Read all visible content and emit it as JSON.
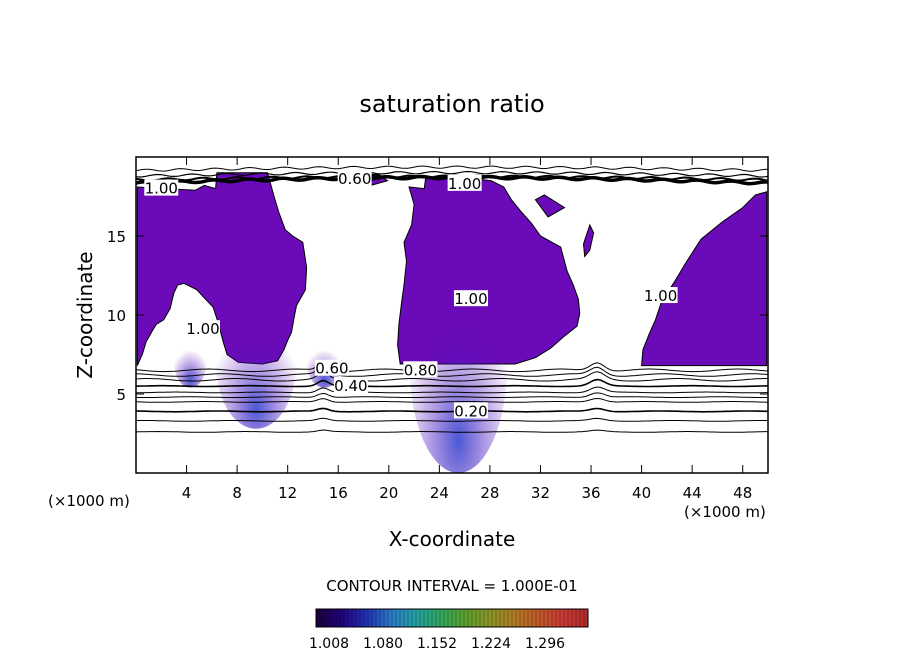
{
  "chart_data": {
    "type": "contour",
    "title": "saturation ratio",
    "xlabel": "X-coordinate",
    "ylabel": "Z-coordinate",
    "x_unit_left": "(×1000 m)",
    "x_unit_right": "(×1000 m)",
    "xlim": [
      0,
      50
    ],
    "ylim": [
      0,
      20
    ],
    "x_ticks": [
      {
        "value": 4,
        "label": "4"
      },
      {
        "value": 8,
        "label": "8"
      },
      {
        "value": 12,
        "label": "12"
      },
      {
        "value": 16,
        "label": "16"
      },
      {
        "value": 20,
        "label": "20"
      },
      {
        "value": 24,
        "label": "24"
      },
      {
        "value": 28,
        "label": "28"
      },
      {
        "value": 32,
        "label": "32"
      },
      {
        "value": 36,
        "label": "36"
      },
      {
        "value": 40,
        "label": "40"
      },
      {
        "value": 44,
        "label": "44"
      },
      {
        "value": 48,
        "label": "48"
      }
    ],
    "y_ticks": [
      {
        "value": 5,
        "label": "5"
      },
      {
        "value": 10,
        "label": "10"
      },
      {
        "value": 15,
        "label": "15"
      }
    ],
    "contour_interval_text": "CONTOUR INTERVAL = 1.000E-01",
    "contour_levels_z": [
      2.6,
      3.3,
      3.9,
      4.5,
      4.8,
      5.1,
      5.5,
      5.9,
      6.2,
      6.5
    ],
    "contour_labels": [
      {
        "text": "0.20",
        "x": 26.5,
        "y": 3.9
      },
      {
        "text": "0.40",
        "x": 17.0,
        "y": 5.5
      },
      {
        "text": "0.60",
        "x": 15.5,
        "y": 6.6
      },
      {
        "text": "0.80",
        "x": 22.5,
        "y": 6.5
      },
      {
        "text": "1.00",
        "x": 2.0,
        "y": 18.0
      },
      {
        "text": "1.00",
        "x": 26.5,
        "y": 11.0
      },
      {
        "text": "1.00",
        "x": 41.5,
        "y": 11.2
      },
      {
        "text": "0.60",
        "x": 17.3,
        "y": 18.6
      },
      {
        "text": "1.00",
        "x": 26.0,
        "y": 18.3
      },
      {
        "text": "1.00",
        "x": 5.3,
        "y": 9.1
      }
    ],
    "colorbar": {
      "ticks": [
        "1.008",
        "1.080",
        "1.152",
        "1.224",
        "1.296"
      ],
      "colors": [
        "#1a0038",
        "#22007a",
        "#1f2fb0",
        "#2b77c8",
        "#23a0a6",
        "#2ea860",
        "#5aa030",
        "#8a9628",
        "#b07c24",
        "#c05a28",
        "#c83a34",
        "#b02a2c"
      ]
    },
    "supersaturated_fill": "#6a0ab8",
    "supersaturated_core": "#2a3cd0",
    "supersaturated_regions": [
      [
        [
          0.1,
          6.8
        ],
        [
          0.1,
          18.1
        ],
        [
          2.4,
          18.0
        ],
        [
          4.7,
          17.9
        ],
        [
          5.4,
          18.2
        ],
        [
          6.3,
          18.0
        ],
        [
          6.4,
          19.0
        ],
        [
          10.4,
          19.0
        ],
        [
          11.0,
          17.3
        ],
        [
          11.3,
          16.5
        ],
        [
          11.8,
          15.4
        ],
        [
          12.4,
          15.0
        ],
        [
          13.2,
          14.6
        ],
        [
          13.5,
          13.0
        ],
        [
          13.4,
          11.6
        ],
        [
          12.7,
          10.6
        ],
        [
          12.5,
          9.8
        ],
        [
          12.3,
          8.9
        ],
        [
          12.0,
          8.4
        ],
        [
          11.7,
          7.8
        ],
        [
          11.2,
          7.1
        ],
        [
          10.0,
          6.9
        ],
        [
          8.1,
          7.0
        ],
        [
          7.2,
          7.5
        ],
        [
          6.9,
          8.3
        ],
        [
          6.5,
          9.5
        ],
        [
          6.1,
          10.5
        ],
        [
          5.5,
          11.0
        ],
        [
          4.8,
          11.6
        ],
        [
          4.3,
          11.8
        ],
        [
          3.8,
          12.0
        ],
        [
          3.3,
          11.9
        ],
        [
          3.0,
          11.4
        ],
        [
          2.7,
          10.4
        ],
        [
          2.2,
          9.7
        ],
        [
          1.6,
          9.4
        ],
        [
          1.3,
          9.0
        ],
        [
          0.8,
          8.3
        ],
        [
          0.5,
          7.5
        ]
      ],
      [
        [
          20.9,
          6.9
        ],
        [
          20.7,
          8.1
        ],
        [
          20.8,
          9.4
        ],
        [
          21.0,
          10.7
        ],
        [
          21.2,
          11.9
        ],
        [
          21.4,
          13.4
        ],
        [
          21.2,
          14.6
        ],
        [
          21.8,
          15.7
        ],
        [
          22.0,
          17.0
        ],
        [
          21.6,
          18.1
        ],
        [
          22.8,
          18.0
        ],
        [
          22.9,
          18.6
        ],
        [
          24.0,
          18.8
        ],
        [
          26.0,
          18.7
        ],
        [
          28.1,
          18.5
        ],
        [
          29.1,
          18.1
        ],
        [
          29.7,
          17.3
        ],
        [
          30.4,
          16.6
        ],
        [
          31.3,
          15.8
        ],
        [
          32.0,
          15.0
        ],
        [
          33.6,
          14.3
        ],
        [
          34.1,
          12.8
        ],
        [
          34.6,
          11.9
        ],
        [
          35.0,
          11.0
        ],
        [
          35.1,
          10.1
        ],
        [
          34.9,
          9.3
        ],
        [
          33.8,
          8.6
        ],
        [
          32.8,
          7.9
        ],
        [
          31.6,
          7.3
        ],
        [
          30.0,
          6.9
        ]
      ],
      [
        [
          40.0,
          6.8
        ],
        [
          40.1,
          7.8
        ],
        [
          40.6,
          8.8
        ],
        [
          41.1,
          9.7
        ],
        [
          41.6,
          10.9
        ],
        [
          42.6,
          12.1
        ],
        [
          43.5,
          13.3
        ],
        [
          44.7,
          14.8
        ],
        [
          46.4,
          15.9
        ],
        [
          48.0,
          16.8
        ],
        [
          49.0,
          17.6
        ],
        [
          49.9,
          17.8
        ],
        [
          49.9,
          6.8
        ]
      ],
      [
        [
          16.9,
          18.6
        ],
        [
          16.9,
          18.4
        ],
        [
          17.5,
          18.2
        ],
        [
          18.6,
          18.2
        ],
        [
          19.9,
          18.5
        ],
        [
          19.2,
          18.9
        ],
        [
          18.0,
          18.9
        ]
      ],
      [
        [
          31.6,
          17.3
        ],
        [
          32.3,
          17.6
        ],
        [
          32.9,
          17.3
        ],
        [
          33.9,
          16.8
        ],
        [
          32.6,
          16.2
        ]
      ],
      [
        [
          35.5,
          13.7
        ],
        [
          35.4,
          14.5
        ],
        [
          35.9,
          15.7
        ],
        [
          36.2,
          15.2
        ],
        [
          35.9,
          14.1
        ]
      ]
    ],
    "plot_area": {
      "ymin": 6.6
    },
    "colorbar_title": "",
    "legend": []
  }
}
